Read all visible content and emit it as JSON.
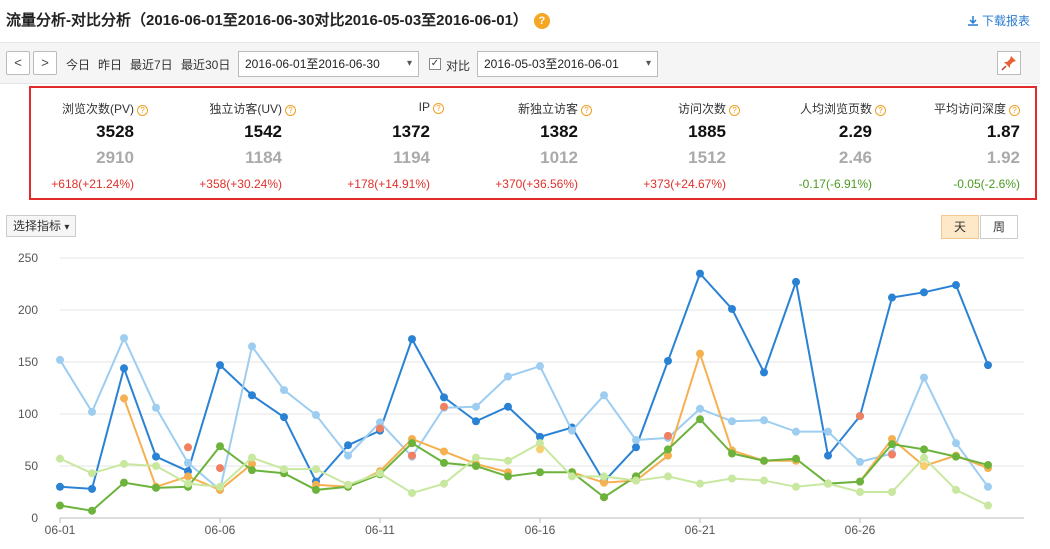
{
  "header": {
    "title": "流量分析-对比分析（2016-06-01至2016-06-30对比2016-05-03至2016-06-01）",
    "help_glyph": "?",
    "download_label": "下载报表"
  },
  "toolbar": {
    "prev_glyph": "<",
    "next_glyph": ">",
    "quick_ranges": [
      "今日",
      "昨日",
      "最近7日",
      "最近30日"
    ],
    "range_value": "2016-06-01至2016-06-30",
    "compare_checked": true,
    "compare_label": "对比",
    "compare_range_value": "2016-05-03至2016-06-01"
  },
  "metrics": [
    {
      "label": "浏览次数(PV)",
      "current": "3528",
      "previous": "2910",
      "diff": "+618(+21.24%)",
      "trend": "up"
    },
    {
      "label": "独立访客(UV)",
      "current": "1542",
      "previous": "1184",
      "diff": "+358(+30.24%)",
      "trend": "up"
    },
    {
      "label": "IP",
      "current": "1372",
      "previous": "1194",
      "diff": "+178(+14.91%)",
      "trend": "up"
    },
    {
      "label": "新独立访客",
      "current": "1382",
      "previous": "1012",
      "diff": "+370(+36.56%)",
      "trend": "up"
    },
    {
      "label": "访问次数",
      "current": "1885",
      "previous": "1512",
      "diff": "+373(+24.67%)",
      "trend": "up"
    },
    {
      "label": "人均浏览页数",
      "current": "2.29",
      "previous": "2.46",
      "diff": "-0.17(-6.91%)",
      "trend": "down"
    },
    {
      "label": "平均访问深度",
      "current": "1.87",
      "previous": "1.92",
      "diff": "-0.05(-2.6%)",
      "trend": "down"
    }
  ],
  "controls": {
    "indicator_label": "选择指标",
    "granularity": [
      "天",
      "周"
    ],
    "granularity_selected": "天"
  },
  "chart_data": {
    "type": "line",
    "x": [
      "06-01",
      "06-02",
      "06-03",
      "06-04",
      "06-05",
      "06-06",
      "06-07",
      "06-08",
      "06-09",
      "06-10",
      "06-11",
      "06-12",
      "06-13",
      "06-14",
      "06-15",
      "06-16",
      "06-17",
      "06-18",
      "06-19",
      "06-20",
      "06-21",
      "06-22",
      "06-23",
      "06-24",
      "06-25",
      "06-26",
      "06-27",
      "06-28",
      "06-29",
      "06-30"
    ],
    "x_tick_labels": [
      "06-01",
      "06-06",
      "06-11",
      "06-16",
      "06-21",
      "06-26"
    ],
    "ylim": [
      0,
      250
    ],
    "y_ticks": [
      0,
      50,
      100,
      150,
      200,
      250
    ],
    "grid": true,
    "series": [
      {
        "color": "#2a82d4",
        "values": [
          30,
          28,
          144,
          59,
          45,
          147,
          118,
          97,
          35,
          70,
          84,
          172,
          116,
          93,
          107,
          78,
          87,
          35,
          68,
          151,
          235,
          201,
          140,
          227,
          60,
          98,
          212,
          217,
          224,
          147
        ]
      },
      {
        "color": "#9dcdf0",
        "values": [
          152,
          102,
          173,
          106,
          53,
          27,
          165,
          123,
          99,
          60,
          92,
          59,
          106,
          107,
          136,
          146,
          84,
          118,
          75,
          77,
          105,
          93,
          94,
          83,
          83,
          54,
          62,
          135,
          72,
          30
        ]
      },
      {
        "color": "#f08060",
        "values": [
          null,
          null,
          null,
          null,
          68,
          48,
          null,
          null,
          null,
          null,
          86,
          60,
          107,
          null,
          null,
          null,
          null,
          20,
          40,
          79,
          null,
          null,
          null,
          null,
          null,
          98,
          61,
          null,
          null,
          null
        ]
      },
      {
        "color": "#f5b050",
        "values": [
          null,
          null,
          115,
          30,
          40,
          27,
          52,
          null,
          32,
          30,
          45,
          76,
          64,
          52,
          44,
          null,
          44,
          34,
          36,
          60,
          158,
          65,
          55,
          55,
          null,
          35,
          76,
          50,
          60,
          48
        ]
      },
      {
        "color": "#6cb33c",
        "values": [
          12,
          7,
          34,
          29,
          30,
          69,
          46,
          43,
          27,
          30,
          42,
          72,
          53,
          50,
          40,
          44,
          44,
          20,
          40,
          66,
          95,
          62,
          55,
          57,
          33,
          35,
          71,
          66,
          59,
          51
        ]
      },
      {
        "color": "#c8e8a0",
        "values": [
          57,
          43,
          52,
          50,
          33,
          30,
          58,
          47,
          47,
          32,
          43,
          24,
          33,
          58,
          55,
          72,
          40,
          40,
          36,
          40,
          33,
          38,
          36,
          30,
          33,
          25,
          25,
          58,
          27,
          12
        ]
      },
      {
        "color": "#f6d070",
        "values": [
          null,
          null,
          null,
          null,
          null,
          null,
          null,
          null,
          null,
          null,
          null,
          null,
          null,
          null,
          null,
          66,
          null,
          null,
          null,
          null,
          null,
          null,
          null,
          null,
          null,
          null,
          null,
          50,
          null,
          null
        ]
      }
    ]
  }
}
